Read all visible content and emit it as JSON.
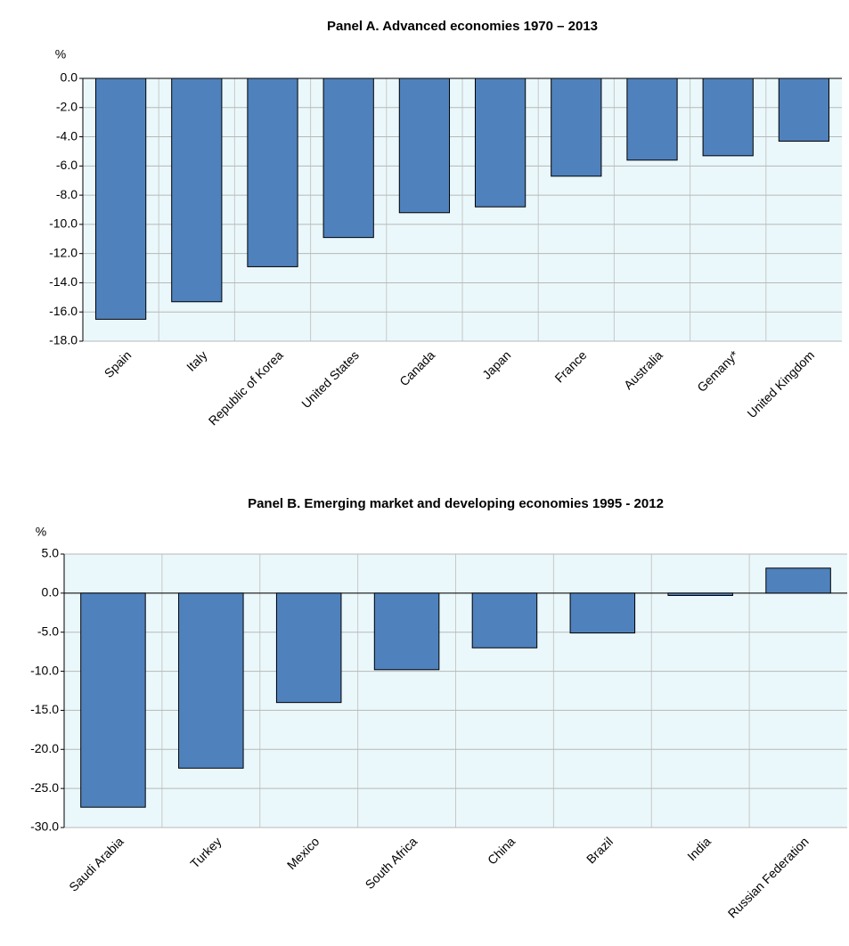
{
  "chart_data": [
    {
      "type": "bar",
      "title": "Panel A.  Advanced economies 1970 – 2013",
      "y_unit": "%",
      "categories": [
        "Spain",
        "Italy",
        "Republic of Korea",
        "United States",
        "Canada",
        "Japan",
        "France",
        "Australia",
        "Gemany*",
        "United Kingdom"
      ],
      "values": [
        -16.5,
        -15.3,
        -12.9,
        -10.9,
        -9.2,
        -8.8,
        -6.7,
        -5.6,
        -5.3,
        -4.3
      ],
      "color": "#4f81bd",
      "ylim": [
        -18,
        0
      ],
      "yticks": [
        {
          "value": -18,
          "label": "-18.0"
        },
        {
          "value": -16,
          "label": "-16.0"
        },
        {
          "value": -14,
          "label": "-14.0"
        },
        {
          "value": -12,
          "label": "-12.0"
        },
        {
          "value": -10,
          "label": "-10.0"
        },
        {
          "value": -8,
          "label": "-8.0"
        },
        {
          "value": -6,
          "label": "-6.0"
        },
        {
          "value": -4,
          "label": "-4.0"
        },
        {
          "value": -2,
          "label": "-2.0"
        },
        {
          "value": 0,
          "label": "0.0"
        }
      ],
      "grid": true
    },
    {
      "type": "bar",
      "title": "Panel B.  Emerging market and developing economies 1995 - 2012",
      "y_unit": "%",
      "categories": [
        "Saudi Arabia",
        "Turkey",
        "Mexico",
        "South Africa",
        "China",
        "Brazil",
        "India",
        "Russian Federation"
      ],
      "values": [
        -27.4,
        -22.4,
        -14.0,
        -9.8,
        -7.0,
        -5.1,
        -0.3,
        3.2
      ],
      "color": "#4f81bd",
      "ylim": [
        -30,
        5
      ],
      "yticks": [
        {
          "value": -30,
          "label": "-30.0"
        },
        {
          "value": -25,
          "label": "-25.0"
        },
        {
          "value": -20,
          "label": "-20.0"
        },
        {
          "value": -15,
          "label": "-15.0"
        },
        {
          "value": -10,
          "label": "-10.0"
        },
        {
          "value": -5,
          "label": "-5.0"
        },
        {
          "value": 0,
          "label": "0.0"
        },
        {
          "value": 5,
          "label": "5.0"
        }
      ],
      "grid": true
    }
  ]
}
